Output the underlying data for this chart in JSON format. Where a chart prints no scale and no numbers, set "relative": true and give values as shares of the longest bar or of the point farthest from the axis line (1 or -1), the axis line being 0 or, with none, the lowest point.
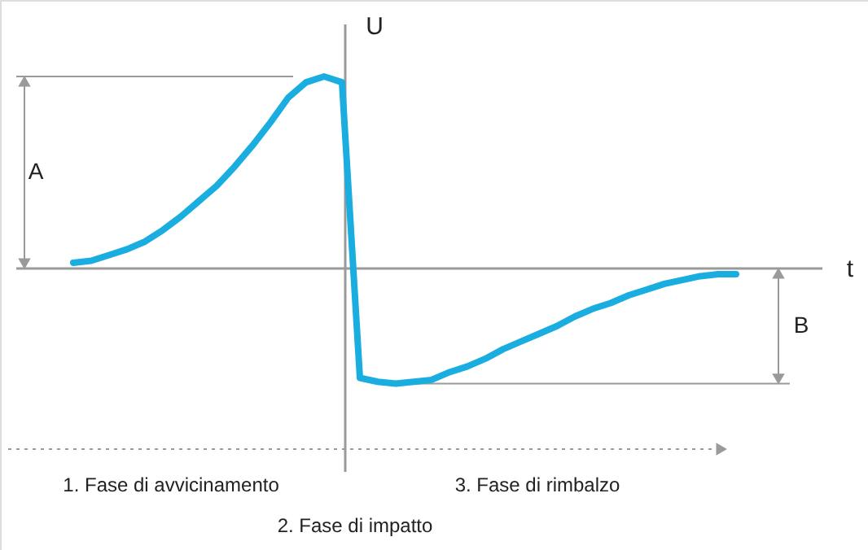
{
  "chart_data": {
    "type": "line",
    "relative": true,
    "xlabel": "t",
    "ylabel": "U",
    "categories": [
      null,
      null,
      null,
      null,
      null,
      null,
      null,
      null,
      null,
      null,
      null,
      null,
      null,
      null,
      null,
      null,
      null,
      null,
      null,
      null,
      null,
      null,
      null,
      null,
      null,
      null,
      null,
      null,
      null,
      null,
      null,
      null,
      null,
      null,
      null,
      null,
      null,
      null
    ],
    "series": [
      {
        "color": "#1aade0",
        "values": [
          0.03,
          0.04,
          0.07,
          0.1,
          0.14,
          0.2,
          0.27,
          0.35,
          0.43,
          0.53,
          0.64,
          0.76,
          0.89,
          0.97,
          1.0,
          0.97,
          -0.57,
          -0.59,
          -0.6,
          -0.59,
          -0.58,
          -0.54,
          -0.51,
          -0.47,
          -0.42,
          -0.38,
          -0.34,
          -0.3,
          -0.25,
          -0.21,
          -0.18,
          -0.14,
          -0.11,
          -0.08,
          -0.06,
          -0.04,
          -0.03,
          -0.03
        ]
      }
    ],
    "annotations": [
      "A",
      "B",
      "1. Fase di avvicinamento",
      "2. Fase di impatto",
      "3. Fase di rimbalzo"
    ],
    "line_style": "solid",
    "marker": "none"
  }
}
